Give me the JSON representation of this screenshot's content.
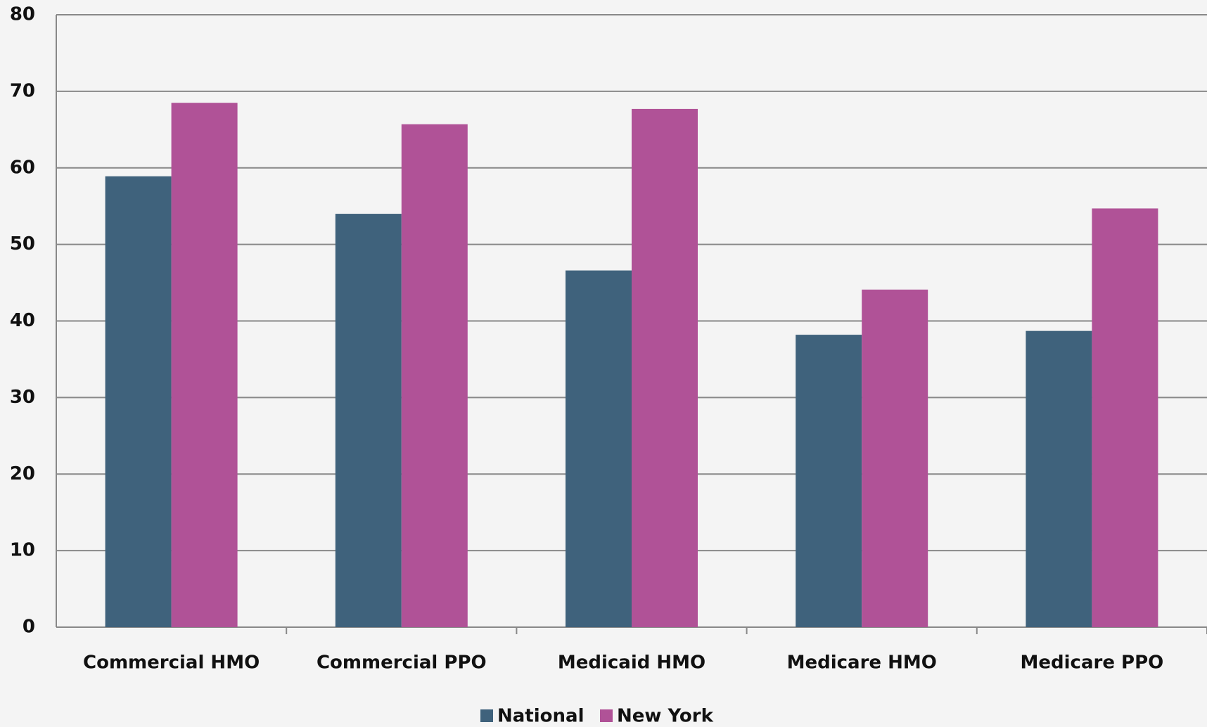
{
  "chart_data": {
    "type": "bar",
    "categories": [
      "Commercial HMO",
      "Commercial PPO",
      "Medicaid HMO",
      "Medicare HMO",
      "Medicare PPO"
    ],
    "series": [
      {
        "name": "National",
        "color": "#3f627c",
        "values": [
          58.9,
          54,
          46.6,
          38.2,
          38.7
        ]
      },
      {
        "name": "New York",
        "color": "#b05297",
        "values": [
          68.5,
          65.7,
          67.7,
          44.1,
          54.7
        ]
      }
    ],
    "ylim": [
      0,
      80
    ],
    "yticks": [
      0,
      10,
      20,
      30,
      40,
      50,
      60,
      70,
      80
    ],
    "grid": true,
    "legend": "bottom"
  }
}
